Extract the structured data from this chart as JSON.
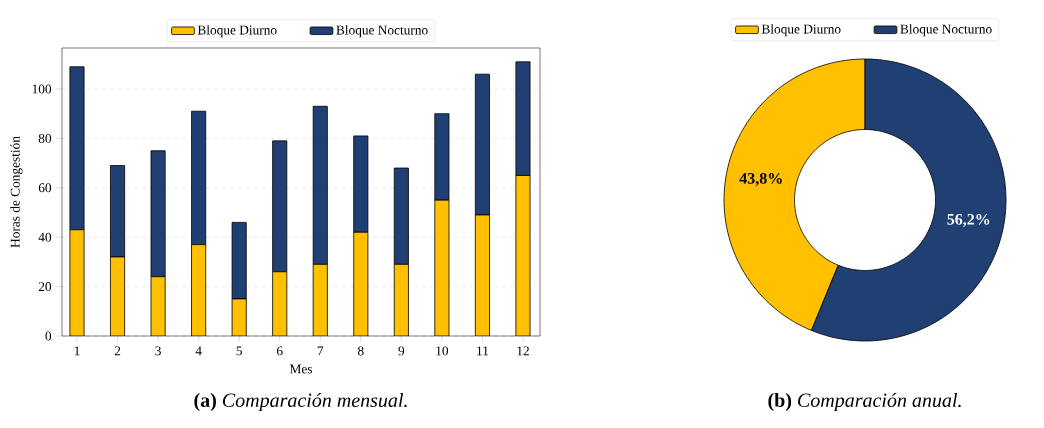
{
  "chart_data": [
    {
      "type": "bar",
      "title": "**(a)** *Comparación mensual.*",
      "xlabel": "Mes",
      "ylabel": "Horas de Congestión",
      "categories": [
        "1",
        "2",
        "3",
        "4",
        "5",
        "6",
        "7",
        "8",
        "9",
        "10",
        "11",
        "12"
      ],
      "stacked": true,
      "series": [
        {
          "name": "Bloque Diurno",
          "color": "#ffc000",
          "values": [
            43,
            32,
            24,
            37,
            15,
            26,
            29,
            42,
            29,
            55,
            49,
            65
          ]
        },
        {
          "name": "Bloque Nocturno",
          "color": "#203f73",
          "values": [
            66,
            37,
            51,
            54,
            31,
            53,
            64,
            39,
            39,
            35,
            57,
            46
          ]
        }
      ],
      "ylim": [
        0,
        116.6
      ],
      "yticks": [
        0,
        20,
        40,
        60,
        80,
        100
      ],
      "grid": "y",
      "legend": "top"
    },
    {
      "type": "donut",
      "title": "**(b)** *Comparación anual.*",
      "categories": [
        "Bloque Diurno",
        "Bloque Nocturno"
      ],
      "values": [
        43.8,
        56.2
      ],
      "colors": [
        "#ffc000",
        "#203f73"
      ],
      "value_labels": [
        "43,8%",
        "56,2%"
      ],
      "legend": "top"
    }
  ]
}
